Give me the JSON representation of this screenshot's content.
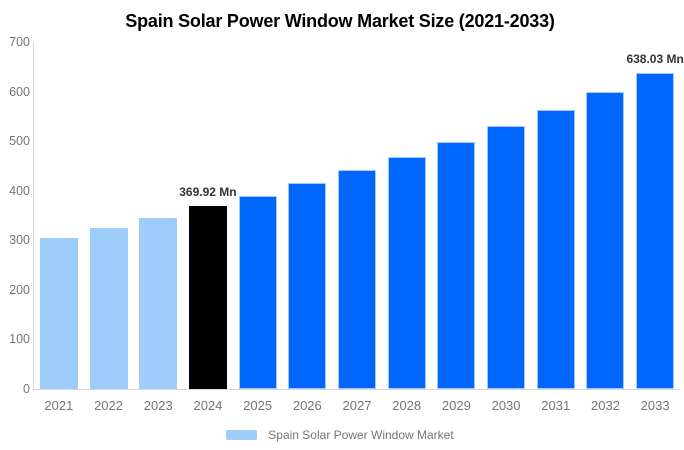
{
  "title": "Spain Solar Power Window Market Size (2021-2033)",
  "legend": {
    "label": "Spain Solar Power Window Market",
    "swatch_color": "#9ECDFB"
  },
  "colors": {
    "historical": "#9ECDFB",
    "highlight": "#000000",
    "forecast": "#0166FC",
    "forecast_border": "#A5C9F7",
    "axis_line": "#D9D9D9",
    "tick_text": "#757575",
    "value_label_text": "#333333",
    "title_text": "#000000",
    "background": "#FFFFFF"
  },
  "chart_data": {
    "type": "bar",
    "title": "Spain Solar Power Window Market Size (2021-2033)",
    "categories": [
      "2021",
      "2022",
      "2023",
      "2024",
      "2025",
      "2026",
      "2027",
      "2028",
      "2029",
      "2030",
      "2031",
      "2032",
      "2033"
    ],
    "values": [
      305,
      325,
      345,
      369.92,
      390,
      415,
      441,
      468,
      498,
      530,
      562,
      600,
      638.03
    ],
    "bar_roles": [
      "historical",
      "historical",
      "historical",
      "highlight",
      "forecast",
      "forecast",
      "forecast",
      "forecast",
      "forecast",
      "forecast",
      "forecast",
      "forecast",
      "forecast"
    ],
    "data_labels": [
      null,
      null,
      null,
      "369.92 Mn",
      null,
      null,
      null,
      null,
      null,
      null,
      null,
      null,
      "638.03 Mn"
    ],
    "xlabel": "",
    "ylabel": "",
    "ylim": [
      0,
      700
    ],
    "yticks": [
      0,
      100,
      200,
      300,
      400,
      500,
      600,
      700
    ],
    "grid": false,
    "legend_entries": [
      "Spain Solar Power Window Market"
    ],
    "legend_position": "bottom",
    "units": "Mn"
  }
}
